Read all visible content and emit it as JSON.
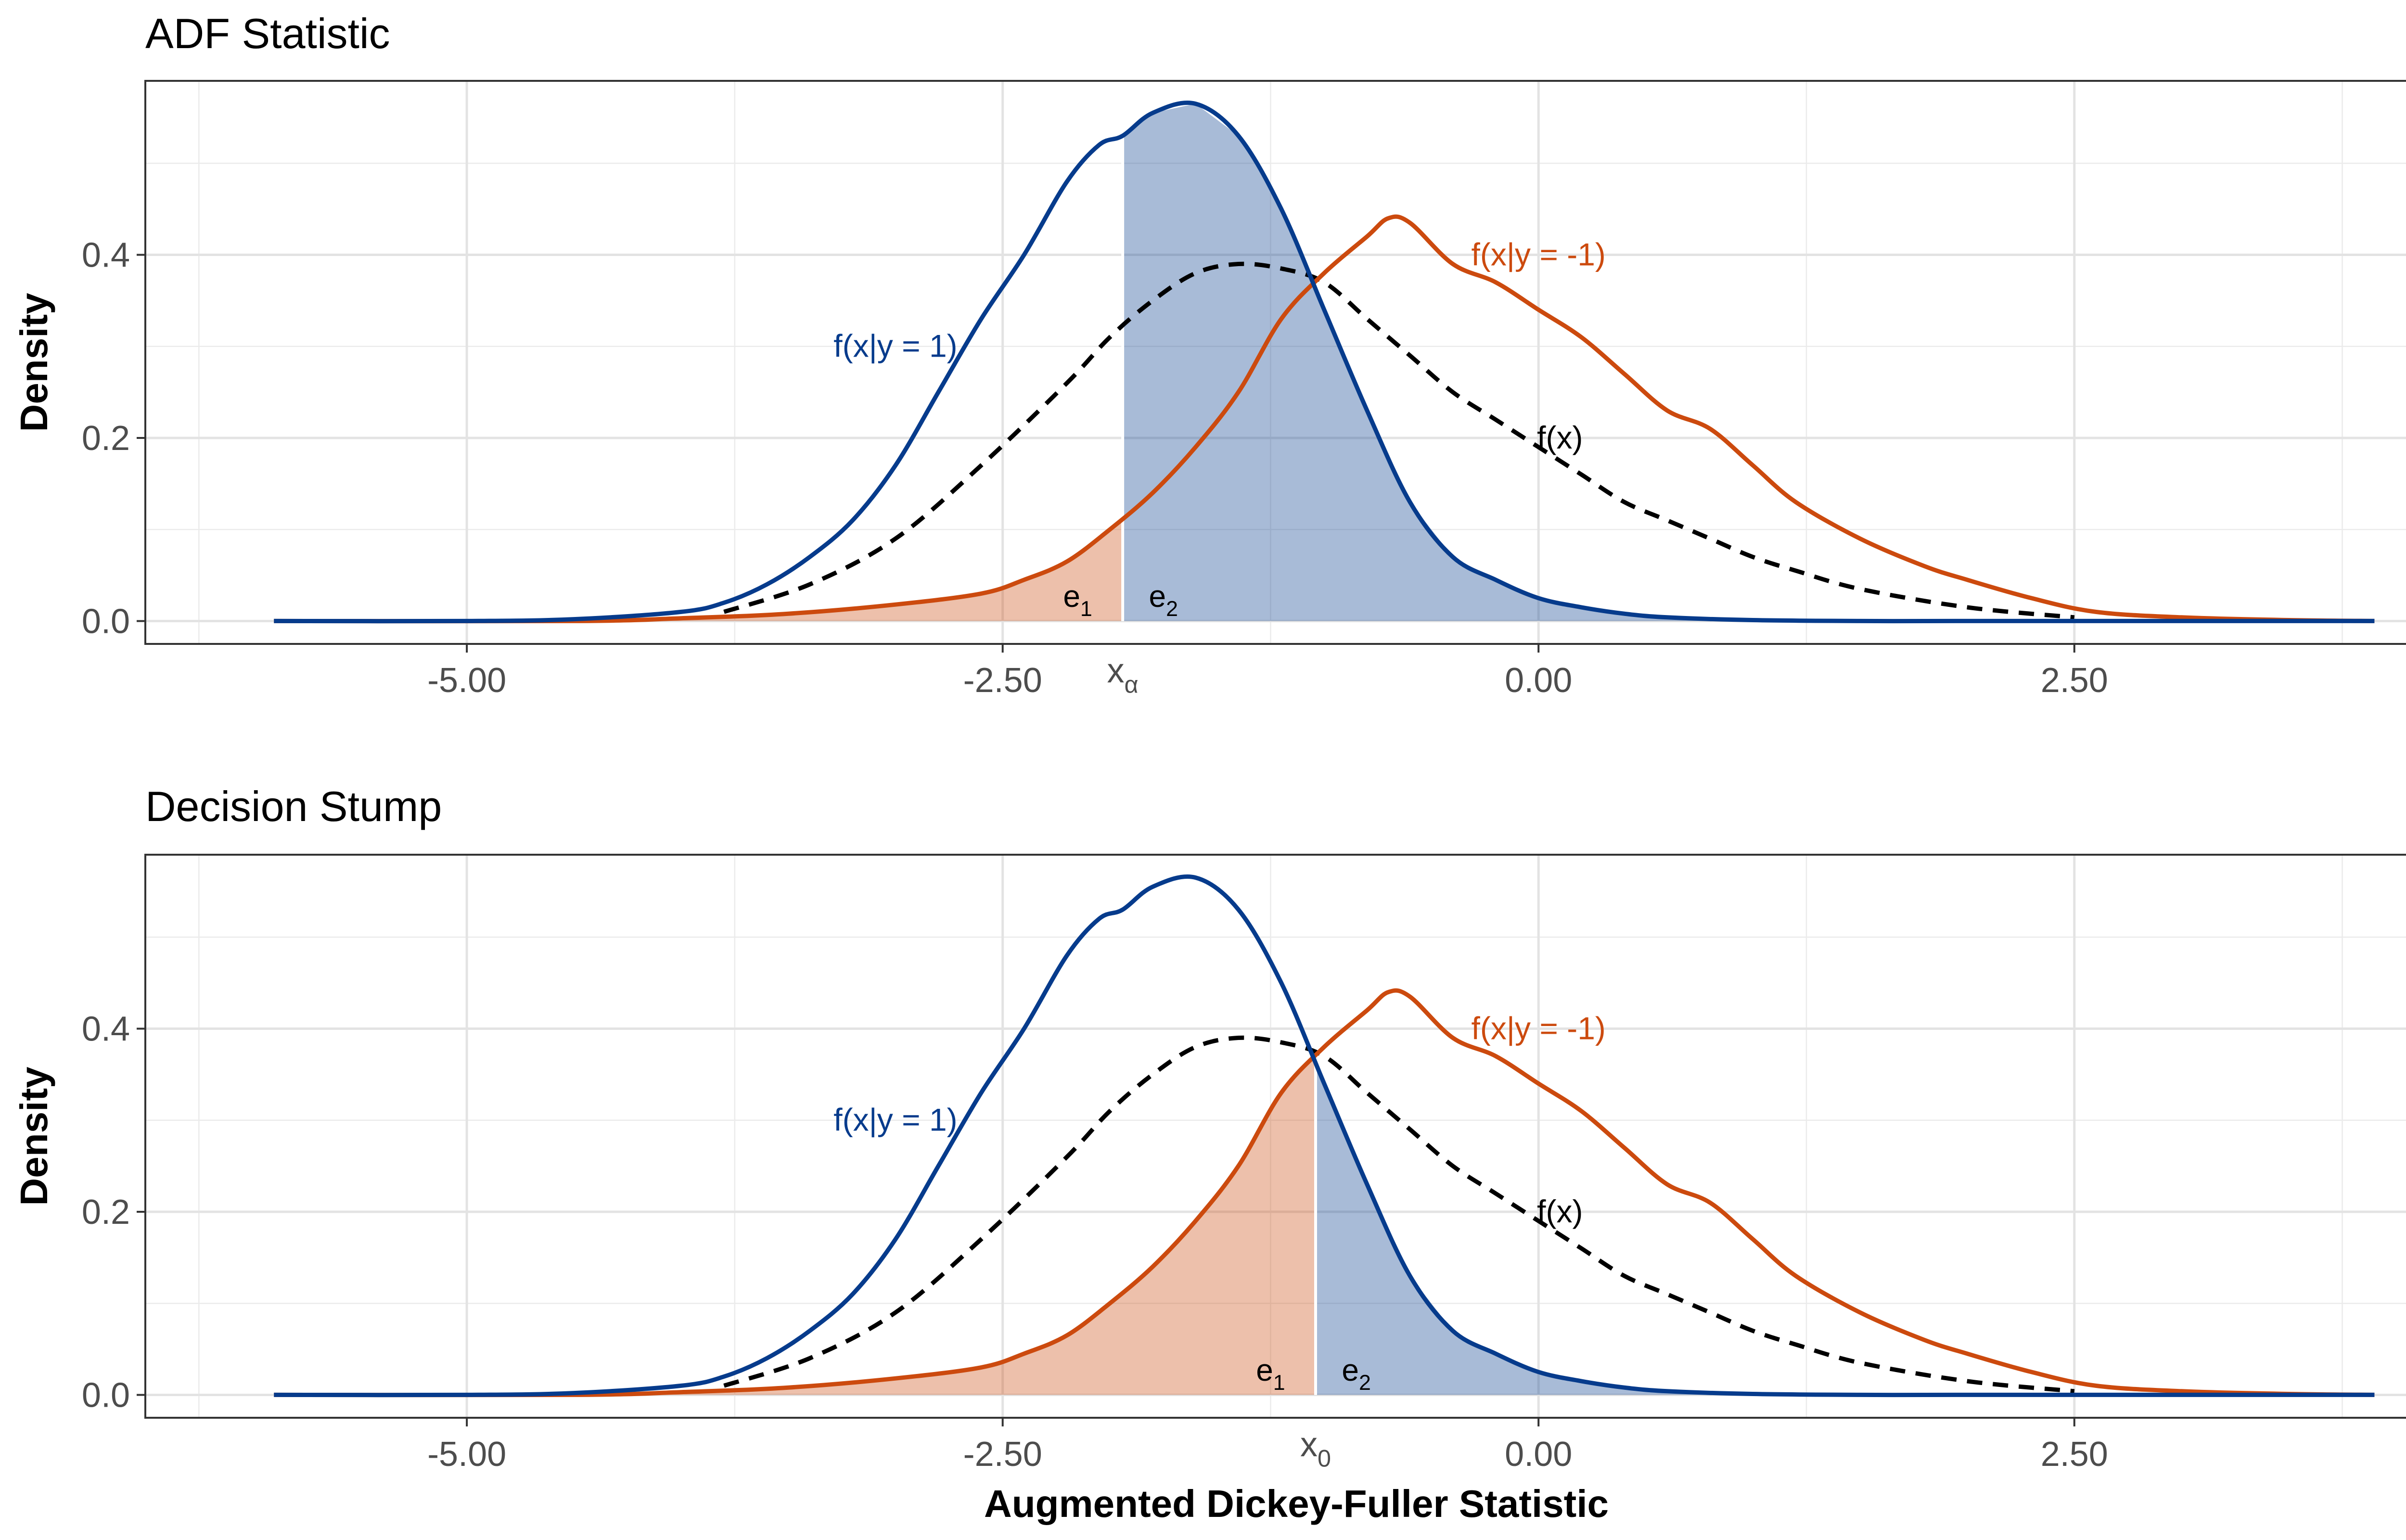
{
  "colors": {
    "blue": "#063b8c",
    "orange": "#cc4a0e",
    "blue_fill": "#a7bad8",
    "orange_fill": "#eebda8",
    "black": "#000000"
  },
  "chart_data": [
    {
      "type": "area",
      "title": "ADF Statistic",
      "xlabel": "",
      "ylabel": "Density",
      "xlim": [
        -6.5,
        4.2
      ],
      "ylim": [
        -0.025,
        0.59
      ],
      "x_ticks": [
        -5,
        -2.5,
        0,
        2.5
      ],
      "x_tick_labels": [
        "-5.00",
        "-2.50",
        "0.00",
        "2.50"
      ],
      "y_ticks": [
        0,
        0.2,
        0.4
      ],
      "y_tick_labels": [
        "0.0",
        "0.2",
        "0.4"
      ],
      "threshold": {
        "x": -1.94,
        "label_base": "x",
        "label_sub": "α"
      },
      "error_labels": {
        "e1": {
          "base": "e",
          "sub": "1",
          "x": -2.15,
          "y": 0.025
        },
        "e2": {
          "base": "e",
          "sub": "2",
          "x": -1.75,
          "y": 0.025
        }
      },
      "annotations": [
        {
          "text": "f(x|y = 1)",
          "x": -3.0,
          "y": 0.3,
          "series": "pos"
        },
        {
          "text": "f(x|y = -1)",
          "x": 0.0,
          "y": 0.4,
          "series": "neg"
        },
        {
          "text": "f(x)",
          "x": 0.1,
          "y": 0.2,
          "series": "mix"
        }
      ],
      "series": [
        {
          "name": "f(x|y = 1)",
          "key": "pos",
          "style": "solid",
          "x": [
            -5.9,
            -5.0,
            -4.5,
            -4.0,
            -3.8,
            -3.6,
            -3.4,
            -3.2,
            -3.0,
            -2.8,
            -2.6,
            -2.4,
            -2.2,
            -2.05,
            -1.94,
            -1.8,
            -1.6,
            -1.4,
            -1.2,
            -1.0,
            -0.8,
            -0.6,
            -0.4,
            -0.2,
            0.0,
            0.2,
            0.4,
            0.6,
            1.0,
            1.5,
            2.0,
            3.0,
            3.9
          ],
          "y": [
            0.0,
            0.0,
            0.002,
            0.01,
            0.02,
            0.04,
            0.07,
            0.11,
            0.17,
            0.25,
            0.33,
            0.4,
            0.48,
            0.52,
            0.53,
            0.555,
            0.565,
            0.53,
            0.45,
            0.34,
            0.23,
            0.13,
            0.07,
            0.045,
            0.025,
            0.015,
            0.008,
            0.004,
            0.001,
            0.0,
            0.0,
            0.0,
            0.0
          ]
        },
        {
          "name": "f(x|y = -1)",
          "key": "neg",
          "style": "solid",
          "x": [
            -5.9,
            -4.5,
            -4.0,
            -3.5,
            -3.0,
            -2.6,
            -2.4,
            -2.2,
            -2.0,
            -1.8,
            -1.6,
            -1.4,
            -1.2,
            -1.0,
            -0.8,
            -0.7,
            -0.6,
            -0.4,
            -0.2,
            0.0,
            0.2,
            0.4,
            0.6,
            0.8,
            1.0,
            1.2,
            1.5,
            1.8,
            2.0,
            2.3,
            2.6,
            3.0,
            3.5,
            3.9
          ],
          "y": [
            0.0,
            0.0,
            0.003,
            0.008,
            0.018,
            0.03,
            0.045,
            0.065,
            0.1,
            0.14,
            0.19,
            0.25,
            0.33,
            0.38,
            0.42,
            0.44,
            0.435,
            0.39,
            0.37,
            0.34,
            0.31,
            0.27,
            0.23,
            0.21,
            0.17,
            0.13,
            0.09,
            0.06,
            0.045,
            0.025,
            0.01,
            0.004,
            0.001,
            0.0
          ]
        },
        {
          "name": "f(x)",
          "key": "mix",
          "style": "dashed",
          "x": [
            -3.8,
            -3.4,
            -3.0,
            -2.6,
            -2.2,
            -2.0,
            -1.8,
            -1.6,
            -1.4,
            -1.2,
            -1.0,
            -0.8,
            -0.6,
            -0.4,
            -0.2,
            0.0,
            0.2,
            0.4,
            0.6,
            0.8,
            1.0,
            1.2,
            1.5,
            2.0,
            2.5
          ],
          "y": [
            0.01,
            0.04,
            0.09,
            0.17,
            0.26,
            0.31,
            0.35,
            0.38,
            0.39,
            0.385,
            0.37,
            0.33,
            0.29,
            0.25,
            0.22,
            0.19,
            0.16,
            0.13,
            0.11,
            0.09,
            0.07,
            0.055,
            0.035,
            0.015,
            0.004
          ]
        }
      ]
    },
    {
      "type": "area",
      "title": "Decision Stump",
      "xlabel": "Augmented Dickey-Fuller Statistic",
      "ylabel": "Density",
      "xlim": [
        -6.5,
        4.2
      ],
      "ylim": [
        -0.025,
        0.59
      ],
      "x_ticks": [
        -5,
        -2.5,
        0,
        2.5
      ],
      "x_tick_labels": [
        "-5.00",
        "-2.50",
        "0.00",
        "2.50"
      ],
      "y_ticks": [
        0,
        0.2,
        0.4
      ],
      "y_tick_labels": [
        "0.0",
        "0.2",
        "0.4"
      ],
      "threshold": {
        "x": -1.04,
        "label_base": "x",
        "label_sub": "0"
      },
      "error_labels": {
        "e1": {
          "base": "e",
          "sub": "1",
          "x": -1.25,
          "y": 0.025
        },
        "e2": {
          "base": "e",
          "sub": "2",
          "x": -0.85,
          "y": 0.025
        }
      },
      "annotations": [
        {
          "text": "f(x|y = 1)",
          "x": -3.0,
          "y": 0.3,
          "series": "pos"
        },
        {
          "text": "f(x|y = -1)",
          "x": 0.0,
          "y": 0.4,
          "series": "neg"
        },
        {
          "text": "f(x)",
          "x": 0.1,
          "y": 0.2,
          "series": "mix"
        }
      ],
      "series": [
        {
          "name": "f(x|y = 1)",
          "key": "pos",
          "style": "solid",
          "x": [
            -5.9,
            -5.0,
            -4.5,
            -4.0,
            -3.8,
            -3.6,
            -3.4,
            -3.2,
            -3.0,
            -2.8,
            -2.6,
            -2.4,
            -2.2,
            -2.05,
            -1.94,
            -1.8,
            -1.6,
            -1.4,
            -1.2,
            -1.0,
            -0.8,
            -0.6,
            -0.4,
            -0.2,
            0.0,
            0.2,
            0.4,
            0.6,
            1.0,
            1.5,
            2.0,
            3.0,
            3.9
          ],
          "y": [
            0.0,
            0.0,
            0.002,
            0.01,
            0.02,
            0.04,
            0.07,
            0.11,
            0.17,
            0.25,
            0.33,
            0.4,
            0.48,
            0.52,
            0.53,
            0.555,
            0.565,
            0.53,
            0.45,
            0.34,
            0.23,
            0.13,
            0.07,
            0.045,
            0.025,
            0.015,
            0.008,
            0.004,
            0.001,
            0.0,
            0.0,
            0.0,
            0.0
          ]
        },
        {
          "name": "f(x|y = -1)",
          "key": "neg",
          "style": "solid",
          "x": [
            -5.9,
            -4.5,
            -4.0,
            -3.5,
            -3.0,
            -2.6,
            -2.4,
            -2.2,
            -2.0,
            -1.8,
            -1.6,
            -1.4,
            -1.2,
            -1.0,
            -0.8,
            -0.7,
            -0.6,
            -0.4,
            -0.2,
            0.0,
            0.2,
            0.4,
            0.6,
            0.8,
            1.0,
            1.2,
            1.5,
            1.8,
            2.0,
            2.3,
            2.6,
            3.0,
            3.5,
            3.9
          ],
          "y": [
            0.0,
            0.0,
            0.003,
            0.008,
            0.018,
            0.03,
            0.045,
            0.065,
            0.1,
            0.14,
            0.19,
            0.25,
            0.33,
            0.38,
            0.42,
            0.44,
            0.435,
            0.39,
            0.37,
            0.34,
            0.31,
            0.27,
            0.23,
            0.21,
            0.17,
            0.13,
            0.09,
            0.06,
            0.045,
            0.025,
            0.01,
            0.004,
            0.001,
            0.0
          ]
        },
        {
          "name": "f(x)",
          "key": "mix",
          "style": "dashed",
          "x": [
            -3.8,
            -3.4,
            -3.0,
            -2.6,
            -2.2,
            -2.0,
            -1.8,
            -1.6,
            -1.4,
            -1.2,
            -1.0,
            -0.8,
            -0.6,
            -0.4,
            -0.2,
            0.0,
            0.2,
            0.4,
            0.6,
            0.8,
            1.0,
            1.2,
            1.5,
            2.0,
            2.5
          ],
          "y": [
            0.01,
            0.04,
            0.09,
            0.17,
            0.26,
            0.31,
            0.35,
            0.38,
            0.39,
            0.385,
            0.37,
            0.33,
            0.29,
            0.25,
            0.22,
            0.19,
            0.16,
            0.13,
            0.11,
            0.09,
            0.07,
            0.055,
            0.035,
            0.015,
            0.004
          ]
        }
      ]
    }
  ]
}
